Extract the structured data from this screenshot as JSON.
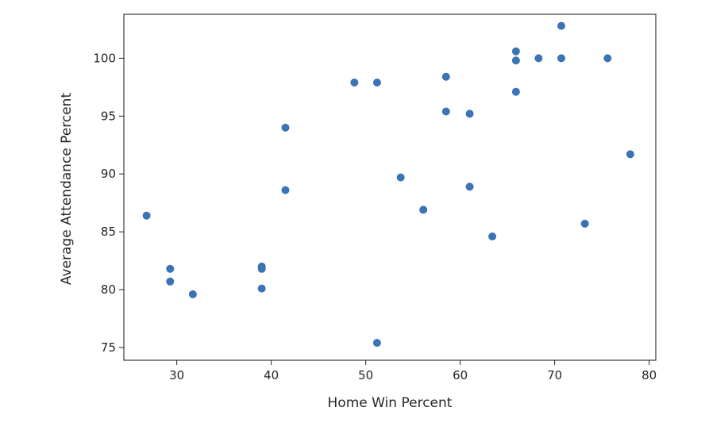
{
  "chart_data": {
    "type": "scatter",
    "title": "",
    "xlabel": "Home Win Percent",
    "ylabel": "Average Attendance Percent",
    "xlim": [
      24.4,
      80.7
    ],
    "ylim": [
      73.9,
      103.8
    ],
    "xticks": [
      30,
      40,
      50,
      60,
      70,
      80
    ],
    "yticks": [
      75,
      80,
      85,
      90,
      95,
      100
    ],
    "grid": false,
    "point_color": "#3a73b6",
    "points": [
      {
        "x": 26.8,
        "y": 86.4
      },
      {
        "x": 29.3,
        "y": 81.8
      },
      {
        "x": 29.3,
        "y": 80.7
      },
      {
        "x": 31.7,
        "y": 79.6
      },
      {
        "x": 39.0,
        "y": 82.0
      },
      {
        "x": 39.0,
        "y": 81.8
      },
      {
        "x": 39.0,
        "y": 80.1
      },
      {
        "x": 41.5,
        "y": 94.0
      },
      {
        "x": 41.5,
        "y": 88.6
      },
      {
        "x": 48.8,
        "y": 97.9
      },
      {
        "x": 51.2,
        "y": 97.9
      },
      {
        "x": 51.2,
        "y": 75.4
      },
      {
        "x": 53.7,
        "y": 89.7
      },
      {
        "x": 56.1,
        "y": 86.9
      },
      {
        "x": 58.5,
        "y": 98.4
      },
      {
        "x": 58.5,
        "y": 95.4
      },
      {
        "x": 61.0,
        "y": 95.2
      },
      {
        "x": 61.0,
        "y": 88.9
      },
      {
        "x": 63.4,
        "y": 84.6
      },
      {
        "x": 65.9,
        "y": 100.6
      },
      {
        "x": 65.9,
        "y": 99.8
      },
      {
        "x": 65.9,
        "y": 97.1
      },
      {
        "x": 68.3,
        "y": 100.0
      },
      {
        "x": 70.7,
        "y": 102.8
      },
      {
        "x": 70.7,
        "y": 100.0
      },
      {
        "x": 73.2,
        "y": 85.7
      },
      {
        "x": 75.6,
        "y": 100.0
      },
      {
        "x": 78.0,
        "y": 91.7
      }
    ]
  }
}
